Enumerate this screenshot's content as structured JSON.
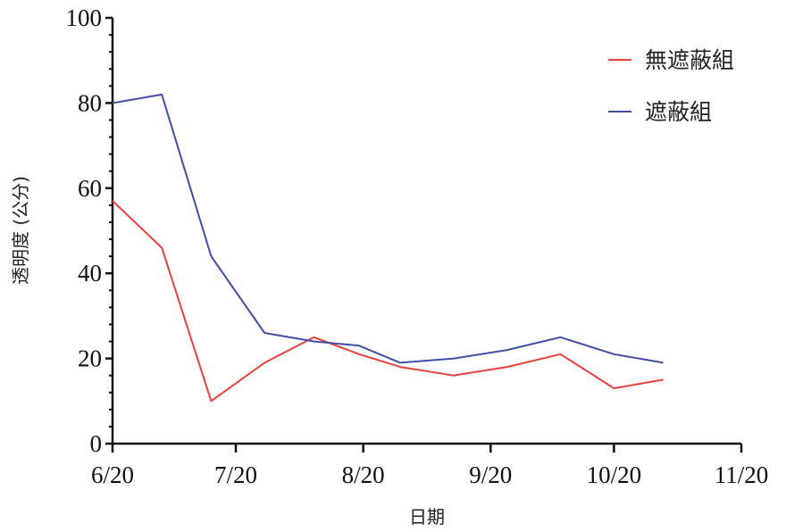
{
  "chart_data": {
    "type": "line",
    "xlabel": "日期",
    "ylabel": "透明度 (公分)",
    "x_ticks": [
      "6/20",
      "7/20",
      "8/20",
      "9/20",
      "10/20",
      "11/20"
    ],
    "x_tick_days": [
      0,
      30,
      61,
      92,
      122,
      153
    ],
    "ylim": [
      0,
      100
    ],
    "y_ticks": [
      "0",
      "20",
      "40",
      "60",
      "80",
      "100"
    ],
    "y_tick_values": [
      0,
      20,
      40,
      60,
      80,
      100
    ],
    "grid": false,
    "legend_position": "top-right",
    "x": [
      "6/20",
      "7/2",
      "7/14",
      "7/27",
      "8/8",
      "8/20",
      "9/2",
      "9/14",
      "9/28",
      "10/11",
      "10/24",
      "11/4"
    ],
    "x_days": [
      0,
      12,
      24,
      37,
      49,
      61,
      74,
      86,
      100,
      113,
      126,
      137
    ],
    "series": [
      {
        "name": "無遮蔽組",
        "color": "#e8413c",
        "x_days": [
          0,
          12,
          24,
          37,
          49,
          60,
          70,
          83,
          96,
          109,
          122,
          134
        ],
        "values": [
          57,
          46,
          10,
          19,
          25,
          21,
          18,
          16,
          18,
          21,
          13,
          15
        ]
      },
      {
        "name": "遮蔽組",
        "color": "#3f4fa8",
        "x_days": [
          0,
          12,
          24,
          37,
          49,
          60,
          70,
          83,
          96,
          109,
          122,
          134
        ],
        "values": [
          80,
          82,
          44,
          26,
          24,
          23,
          19,
          20,
          22,
          25,
          21,
          19
        ]
      }
    ]
  }
}
